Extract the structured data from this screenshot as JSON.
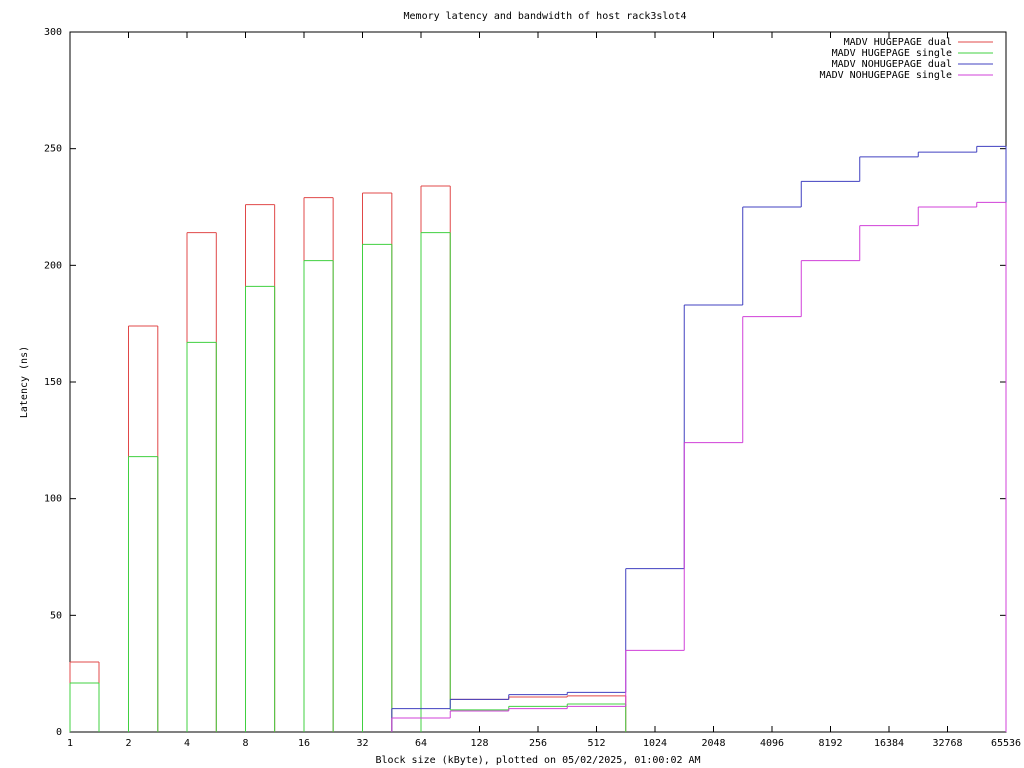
{
  "chart_data": {
    "type": "step",
    "title": "Memory latency and bandwidth of host rack3slot4",
    "x_label": "Block size (kByte), plotted on 05/02/2025, 01:00:02 AM",
    "y_label": "Latency (ns)",
    "x_scale": "log2",
    "legend": "top-right",
    "x": [
      1,
      1.41,
      2,
      2.83,
      4,
      5.66,
      8,
      11.3,
      16,
      22.6,
      32,
      45.3,
      64,
      90.5,
      181,
      362,
      724,
      1448,
      2896,
      5793,
      11585,
      23170,
      46341,
      65536
    ],
    "series": [
      {
        "name": "MADV HUGEPAGE dual",
        "color": "#e04848",
        "values": [
          30,
          null,
          174,
          null,
          214,
          null,
          226,
          null,
          229,
          null,
          231,
          null,
          234,
          14,
          15,
          15.5,
          null,
          null,
          null,
          null,
          null,
          null,
          null,
          null
        ]
      },
      {
        "name": "MADV HUGEPAGE single",
        "color": "#40d040",
        "values": [
          21,
          null,
          118,
          null,
          167,
          null,
          191,
          null,
          202,
          null,
          209,
          null,
          214,
          9.5,
          11,
          12,
          null,
          null,
          null,
          null,
          null,
          null,
          null,
          null
        ]
      },
      {
        "name": "MADV NOHUGEPAGE dual",
        "color": "#4040c0",
        "values": [
          null,
          null,
          null,
          null,
          null,
          null,
          null,
          null,
          null,
          null,
          null,
          10,
          10,
          14,
          16,
          17,
          70,
          183,
          225,
          236,
          246.5,
          248.5,
          251,
          null
        ]
      },
      {
        "name": "MADV NOHUGEPAGE single",
        "color": "#d040d8",
        "values": [
          null,
          null,
          null,
          null,
          null,
          null,
          null,
          null,
          null,
          null,
          null,
          6,
          6,
          9,
          10,
          11,
          35,
          124,
          178,
          202,
          217,
          225,
          227,
          null
        ]
      }
    ],
    "xlim": [
      1,
      65536
    ],
    "xticks": [
      1,
      2,
      4,
      8,
      16,
      32,
      64,
      128,
      256,
      512,
      1024,
      2048,
      4096,
      8192,
      16384,
      32768,
      65536
    ],
    "ylim": [
      0,
      300
    ],
    "yticks": [
      0,
      50,
      100,
      150,
      200,
      250,
      300
    ]
  }
}
